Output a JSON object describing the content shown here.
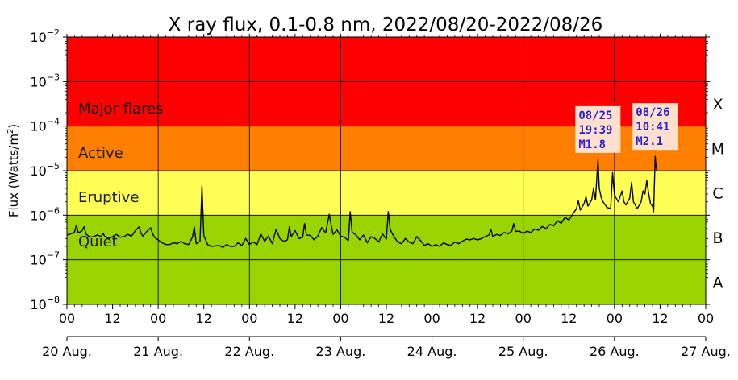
{
  "chart_data": {
    "type": "line",
    "title": "X ray flux, 0.1-0.8 nm, 2022/08/20-2022/08/26",
    "ylabel": "Flux (Watts/m",
    "ylabel_sup": "2",
    "ylabel_close": ")",
    "yscale": "log",
    "ylim": [
      1e-08,
      0.01
    ],
    "ytick_values": [
      1e-08,
      1e-07,
      1e-06,
      1e-05,
      0.0001,
      0.001,
      0.01
    ],
    "ytick_labels": [
      {
        "base": "10",
        "exp": "−8"
      },
      {
        "base": "10",
        "exp": "−7"
      },
      {
        "base": "10",
        "exp": "−6"
      },
      {
        "base": "10",
        "exp": "−5"
      },
      {
        "base": "10",
        "exp": "−4"
      },
      {
        "base": "10",
        "exp": "−3"
      },
      {
        "base": "10",
        "exp": "−2"
      }
    ],
    "xlim_hours": [
      0,
      168
    ],
    "xtick_hours": [
      0,
      12,
      24,
      36,
      48,
      60,
      72,
      84,
      96,
      108,
      120,
      132,
      144,
      156,
      168
    ],
    "xtick_labels": [
      "00",
      "12",
      "00",
      "12",
      "00",
      "12",
      "00",
      "12",
      "00",
      "12",
      "00",
      "12",
      "00",
      "12",
      "00"
    ],
    "date_hours": [
      0,
      24,
      48,
      72,
      96,
      120,
      144,
      168
    ],
    "date_labels": [
      "20 Aug.",
      "21 Aug.",
      "22 Aug.",
      "23 Aug.",
      "24 Aug.",
      "25 Aug.",
      "26 Aug.",
      "27 Aug."
    ],
    "grid": true,
    "bands": [
      {
        "label": "Major flares",
        "from": 0.0001,
        "to": 0.01,
        "color": "#ff0000"
      },
      {
        "label": "Active",
        "from": 1e-05,
        "to": 0.0001,
        "color": "#ff7f00"
      },
      {
        "label": "Eruptive",
        "from": 1e-06,
        "to": 1e-05,
        "color": "#ffff55"
      },
      {
        "label": "Quiet",
        "from": 1e-08,
        "to": 1e-06,
        "color": "#99d300"
      }
    ],
    "classes": [
      {
        "label": "X",
        "at": 0.000316
      },
      {
        "label": "M",
        "at": 3.16e-05
      },
      {
        "label": "C",
        "at": 3.16e-06
      },
      {
        "label": "B",
        "at": 3.16e-07
      },
      {
        "label": "A",
        "at": 3.16e-08
      }
    ],
    "annotations": [
      {
        "lines": [
          "08/25",
          "19:39",
          "M1.8"
        ],
        "hour": 139.65,
        "value": 1.8e-05
      },
      {
        "lines": [
          "08/26",
          "10:41",
          "M2.1"
        ],
        "hour": 154.7,
        "value": 2.1e-05
      }
    ],
    "series": [
      {
        "color": "#000000",
        "points": [
          [
            0,
            3.6e-07
          ],
          [
            1,
            3.8e-07
          ],
          [
            2,
            4.2e-07
          ],
          [
            2.5,
            6e-07
          ],
          [
            3,
            4e-07
          ],
          [
            4,
            4.5e-07
          ],
          [
            4.5,
            5.5e-07
          ],
          [
            5,
            3.8e-07
          ],
          [
            6,
            3.2e-07
          ],
          [
            7,
            3.3e-07
          ],
          [
            8,
            3.6e-07
          ],
          [
            9,
            3.3e-07
          ],
          [
            9.5,
            3.9e-07
          ],
          [
            10,
            3.3e-07
          ],
          [
            11,
            3e-07
          ],
          [
            12,
            3.3e-07
          ],
          [
            13,
            3.7e-07
          ],
          [
            14,
            3.2e-07
          ],
          [
            15,
            3.3e-07
          ],
          [
            16,
            3.7e-07
          ],
          [
            17,
            3.4e-07
          ],
          [
            18,
            4.5e-07
          ],
          [
            19,
            5.5e-07
          ],
          [
            19.5,
            3.9e-07
          ],
          [
            20,
            3.4e-07
          ],
          [
            21,
            4.3e-07
          ],
          [
            22,
            5.2e-07
          ],
          [
            22.5,
            3.9e-07
          ],
          [
            23,
            3.2e-07
          ],
          [
            24,
            2.8e-07
          ],
          [
            25,
            2.4e-07
          ],
          [
            26,
            2.2e-07
          ],
          [
            27,
            2.2e-07
          ],
          [
            28,
            2.4e-07
          ],
          [
            29,
            2.3e-07
          ],
          [
            30,
            2.6e-07
          ],
          [
            31,
            2.3e-07
          ],
          [
            32,
            2.2e-07
          ],
          [
            33,
            3.2e-07
          ],
          [
            33.5,
            5.5e-07
          ],
          [
            34,
            2.3e-07
          ],
          [
            35,
            2.6e-07
          ],
          [
            35.5,
            4.6e-06
          ],
          [
            36,
            3.5e-07
          ],
          [
            37,
            2.2e-07
          ],
          [
            38,
            2e-07
          ],
          [
            40,
            2.1e-07
          ],
          [
            41,
            1.9e-07
          ],
          [
            42,
            2.2e-07
          ],
          [
            43,
            2e-07
          ],
          [
            44,
            2e-07
          ],
          [
            45,
            2.4e-07
          ],
          [
            46,
            2.1e-07
          ],
          [
            47,
            3e-07
          ],
          [
            48,
            2.2e-07
          ],
          [
            49,
            2.5e-07
          ],
          [
            50,
            2.2e-07
          ],
          [
            51,
            3.8e-07
          ],
          [
            52,
            2.6e-07
          ],
          [
            53,
            3.4e-07
          ],
          [
            54,
            2.3e-07
          ],
          [
            55,
            4.8e-07
          ],
          [
            56,
            3e-07
          ],
          [
            57,
            2.6e-07
          ],
          [
            58,
            2.8e-07
          ],
          [
            58.5,
            5.5e-07
          ],
          [
            59,
            3.3e-07
          ],
          [
            60,
            4.5e-07
          ],
          [
            61,
            3e-07
          ],
          [
            62,
            3.2e-07
          ],
          [
            62.5,
            6.5e-07
          ],
          [
            63,
            3.6e-07
          ],
          [
            64,
            3.5e-07
          ],
          [
            65,
            2.8e-07
          ],
          [
            66,
            3.4e-07
          ],
          [
            67,
            5.3e-07
          ],
          [
            68,
            4e-07
          ],
          [
            69,
            1.05e-06
          ],
          [
            69.5,
            6e-07
          ],
          [
            70,
            3.7e-07
          ],
          [
            71,
            4.7e-07
          ],
          [
            72,
            3.4e-07
          ],
          [
            73,
            3.2e-07
          ],
          [
            74,
            2.7e-07
          ],
          [
            74.5,
            1.2e-06
          ],
          [
            75,
            4.2e-07
          ],
          [
            76,
            3.6e-07
          ],
          [
            77,
            2.8e-07
          ],
          [
            78,
            3.6e-07
          ],
          [
            79,
            2.4e-07
          ],
          [
            80,
            3.3e-07
          ],
          [
            81,
            3e-07
          ],
          [
            82,
            2.5e-07
          ],
          [
            83,
            3.8e-07
          ],
          [
            84,
            2.9e-07
          ],
          [
            84.5,
            1.2e-06
          ],
          [
            85,
            4.8e-07
          ],
          [
            86,
            3.3e-07
          ],
          [
            87,
            2.5e-07
          ],
          [
            88,
            2.3e-07
          ],
          [
            89,
            3e-07
          ],
          [
            90,
            2.5e-07
          ],
          [
            91,
            2.3e-07
          ],
          [
            92,
            3.3e-07
          ],
          [
            93,
            2.7e-07
          ],
          [
            94,
            2.1e-07
          ],
          [
            95,
            2.3e-07
          ],
          [
            96,
            2e-07
          ],
          [
            97,
            2.2e-07
          ],
          [
            98,
            2e-07
          ],
          [
            99,
            2.4e-07
          ],
          [
            100,
            2.2e-07
          ],
          [
            101,
            2.1e-07
          ],
          [
            102,
            2.5e-07
          ],
          [
            103,
            2.3e-07
          ],
          [
            104,
            2.6e-07
          ],
          [
            105,
            2.9e-07
          ],
          [
            106,
            2.8e-07
          ],
          [
            107,
            3e-07
          ],
          [
            108,
            2.8e-07
          ],
          [
            109,
            3e-07
          ],
          [
            110,
            3.3e-07
          ],
          [
            111,
            3.6e-07
          ],
          [
            111.5,
            4.8e-07
          ],
          [
            112,
            3.3e-07
          ],
          [
            113,
            3.7e-07
          ],
          [
            114,
            3.5e-07
          ],
          [
            115,
            4.1e-07
          ],
          [
            116,
            3.8e-07
          ],
          [
            117,
            4.4e-07
          ],
          [
            117.5,
            6.5e-07
          ],
          [
            118,
            4.3e-07
          ],
          [
            119,
            4.4e-07
          ],
          [
            120,
            3.9e-07
          ],
          [
            121,
            4.4e-07
          ],
          [
            122,
            4.1e-07
          ],
          [
            123,
            4.9e-07
          ],
          [
            124,
            4.6e-07
          ],
          [
            125,
            5.6e-07
          ],
          [
            126,
            5e-07
          ],
          [
            127,
            6.2e-07
          ],
          [
            128,
            5.8e-07
          ],
          [
            129,
            7.5e-07
          ],
          [
            130,
            6.6e-07
          ],
          [
            131,
            9e-07
          ],
          [
            132,
            7.8e-07
          ],
          [
            133,
            1.05e-06
          ],
          [
            134,
            1.4e-06
          ],
          [
            134.5,
            2.1e-06
          ],
          [
            135,
            1.3e-06
          ],
          [
            136,
            1.8e-06
          ],
          [
            136.5,
            2.6e-06
          ],
          [
            137,
            1.6e-06
          ],
          [
            138,
            2.2e-06
          ],
          [
            138.5,
            4e-06
          ],
          [
            139,
            2.2e-06
          ],
          [
            139.65,
            1.8e-05
          ],
          [
            140,
            4e-06
          ],
          [
            140.5,
            2.5e-06
          ],
          [
            141,
            2e-06
          ],
          [
            142,
            1.5e-06
          ],
          [
            143,
            1.4e-06
          ],
          [
            143.5,
            9e-06
          ],
          [
            144,
            2.8e-06
          ],
          [
            145,
            2e-06
          ],
          [
            146,
            3.5e-06
          ],
          [
            146.5,
            2e-06
          ],
          [
            147,
            1.7e-06
          ],
          [
            148,
            2.4e-06
          ],
          [
            148.5,
            5.5e-06
          ],
          [
            149,
            2e-06
          ],
          [
            150,
            1.4e-06
          ],
          [
            151,
            2e-06
          ],
          [
            151.5,
            3.5e-06
          ],
          [
            152,
            3e-06
          ],
          [
            152.5,
            6e-06
          ],
          [
            153,
            3e-06
          ],
          [
            153.5,
            1.8e-06
          ],
          [
            154,
            1.6e-06
          ],
          [
            154.3,
            1.2e-06
          ],
          [
            154.7,
            2.1e-05
          ],
          [
            155,
            1.1e-05
          ],
          [
            155.3,
            9.5e-06
          ]
        ]
      }
    ]
  }
}
